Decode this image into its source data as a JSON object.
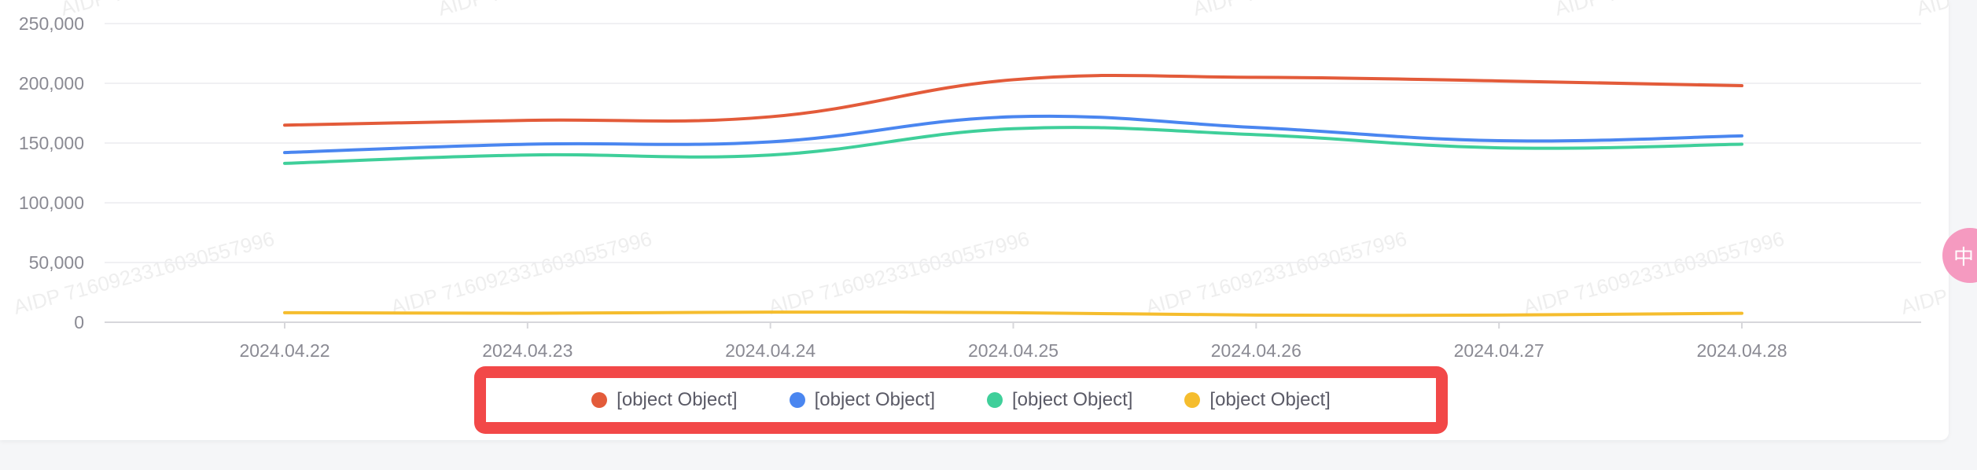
{
  "watermark": "AIDP 7160923316030557996",
  "side_button_label": "中",
  "chart_data": {
    "type": "line",
    "categories": [
      "2024.04.22",
      "2024.04.23",
      "2024.04.24",
      "2024.04.25",
      "2024.04.26",
      "2024.04.27",
      "2024.04.28"
    ],
    "ylim": [
      0,
      250000
    ],
    "yticks": [
      0,
      50000,
      100000,
      150000,
      200000,
      250000
    ],
    "ytick_labels": [
      "0",
      "50,000",
      "100,000",
      "150,000",
      "200,000",
      "250,000"
    ],
    "grid": true,
    "legend_position": "bottom",
    "series": [
      {
        "name": "[object Object]",
        "color": "#e35b3a",
        "values": [
          165000,
          169000,
          172000,
          203000,
          205000,
          202000,
          198000
        ]
      },
      {
        "name": "[object Object]",
        "color": "#4a86f0",
        "values": [
          142000,
          149000,
          151000,
          172000,
          163000,
          152000,
          156000
        ]
      },
      {
        "name": "[object Object]",
        "color": "#3fcf9a",
        "values": [
          133000,
          140000,
          140000,
          162000,
          157000,
          146000,
          149000
        ]
      },
      {
        "name": "[object Object]",
        "color": "#f5bd2e",
        "values": [
          8000,
          7500,
          8500,
          8000,
          6000,
          6000,
          7500
        ]
      }
    ]
  }
}
